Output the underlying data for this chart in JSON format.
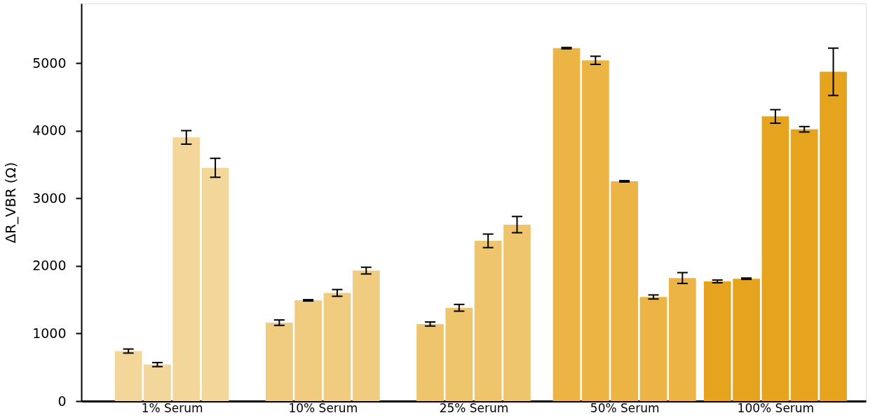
{
  "chart_data": {
    "type": "bar",
    "ylabel": "ΔR_VBR (Ω)",
    "categories": [
      "1% Serum",
      "10% Serum",
      "25% Serum",
      "50% Serum",
      "100% Serum"
    ],
    "series": [
      {
        "colors": [
          "#f3d699",
          "#f0cc80",
          "#eec56c",
          "#ebb444",
          "#e6a41e"
        ],
        "values": [
          740,
          1160,
          1140,
          5220,
          1770
        ],
        "errors": [
          30,
          40,
          30,
          10,
          20
        ]
      },
      {
        "colors": [
          "#f3d699",
          "#f0cc80",
          "#eec56c",
          "#ebb444",
          "#e6a41e"
        ],
        "values": [
          540,
          1490,
          1380,
          5040,
          1810
        ],
        "errors": [
          30,
          10,
          50,
          60,
          10
        ]
      },
      {
        "colors": [
          "#f3d699",
          "#f0cc80",
          "#eec56c",
          "#ebb444",
          "#e6a41e"
        ],
        "values": [
          3900,
          1600,
          2370,
          3250,
          4210
        ],
        "errors": [
          100,
          50,
          100,
          10,
          100
        ]
      },
      {
        "colors": [
          "#f3d699",
          "#f0cc80",
          "#eec56c",
          "#ebb444",
          "#e6a41e"
        ],
        "values": [
          3450,
          1930,
          2610,
          1540,
          4020
        ],
        "errors": [
          140,
          50,
          120,
          30,
          40
        ]
      },
      {
        "colors": [
          "#f3d699",
          "#f0cc80",
          "#eec56c",
          "#ebb444",
          "#e6a41e"
        ],
        "values": [
          null,
          null,
          null,
          1820,
          4870
        ],
        "errors": [
          null,
          null,
          null,
          80,
          350
        ]
      }
    ],
    "ylim": [
      0,
      5880
    ],
    "yticks": [
      0,
      1000,
      2000,
      3000,
      4000,
      5000
    ],
    "grid": false
  }
}
